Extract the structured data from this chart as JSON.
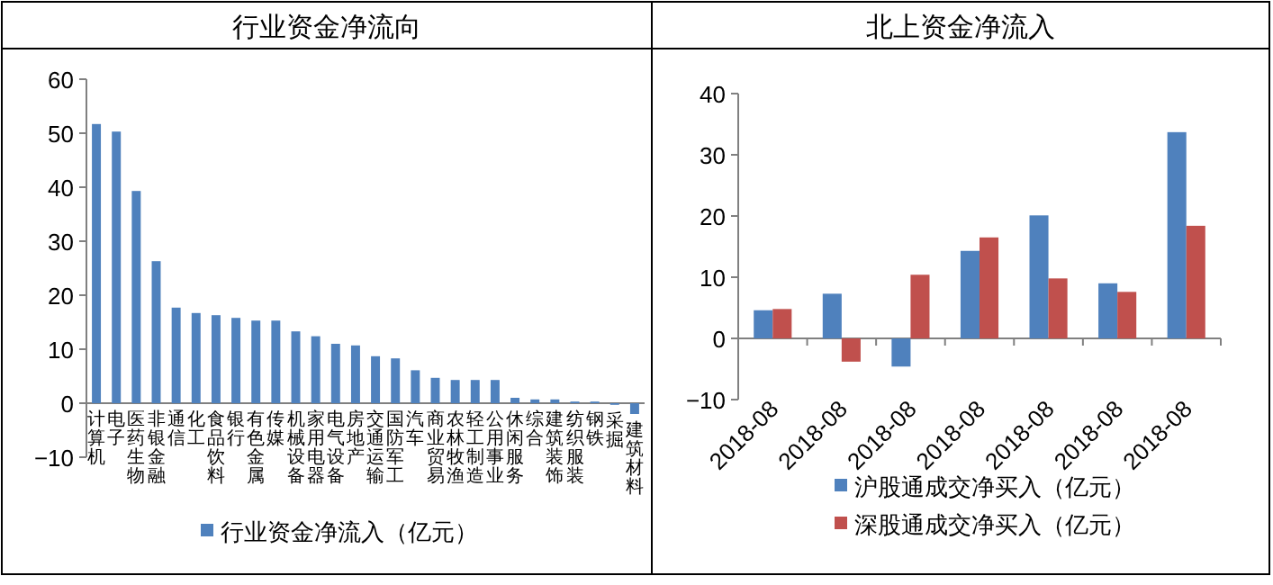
{
  "chart_data": [
    {
      "type": "bar",
      "title": "行业资金净流向",
      "categories": [
        "计算机",
        "电子",
        "医药生物",
        "非银金融",
        "通信",
        "化工",
        "食品饮料",
        "银行",
        "有色金属",
        "传媒",
        "机械设备",
        "家用电器",
        "电气设备",
        "房地产",
        "交通运输",
        "国防军工",
        "汽车",
        "商业贸易",
        "农林牧渔",
        "轻工制造",
        "公用事业",
        "休闲服务",
        "综合",
        "建筑装饰",
        "纺织服装",
        "钢铁",
        "采掘",
        "建筑材料"
      ],
      "series": [
        {
          "name": "行业资金净流入（亿元）",
          "color": "#4f81bd",
          "values": [
            51.7,
            50.3,
            39.3,
            26.3,
            17.7,
            16.7,
            16.3,
            15.8,
            15.3,
            15.3,
            13.3,
            12.4,
            11.0,
            10.7,
            8.7,
            8.3,
            6.1,
            4.7,
            4.3,
            4.3,
            4.3,
            1.0,
            0.7,
            0.7,
            0.3,
            0.3,
            -0.3,
            -2.0
          ]
        }
      ],
      "ylim": [
        -10,
        60
      ],
      "yticks": [
        -10,
        0,
        10,
        20,
        30,
        40,
        50,
        60
      ],
      "legend": "bottom"
    },
    {
      "type": "bar",
      "title": "北上资金净流入",
      "categories": [
        "2018-08",
        "2018-08",
        "2018-08",
        "2018-08",
        "2018-08",
        "2018-08",
        "2018-08"
      ],
      "series": [
        {
          "name": "沪股通成交净买入（亿元）",
          "color": "#4f81bd",
          "values": [
            4.6,
            7.3,
            -4.6,
            14.3,
            20.1,
            9.0,
            33.7
          ]
        },
        {
          "name": "深股通成交净买入（亿元）",
          "color": "#c0504d",
          "values": [
            4.8,
            -3.8,
            10.4,
            16.5,
            9.8,
            7.6,
            18.4
          ]
        }
      ],
      "ylim": [
        -10,
        40
      ],
      "yticks": [
        -10,
        0,
        10,
        20,
        30,
        40
      ],
      "legend": "bottom"
    }
  ]
}
